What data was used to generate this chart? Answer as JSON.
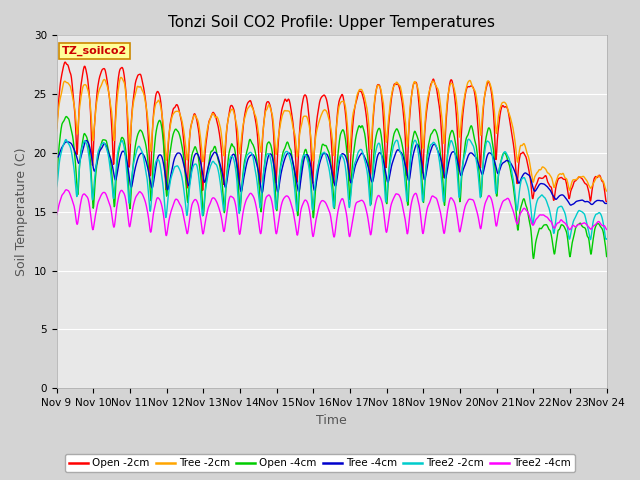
{
  "title": "Tonzi Soil CO2 Profile: Upper Temperatures",
  "xlabel": "Time",
  "ylabel": "Soil Temperature (C)",
  "ylim": [
    0,
    30
  ],
  "plot_bg_color": "#e8e8e8",
  "fig_bg_color": "#d4d4d4",
  "x_ticks": [
    9,
    10,
    11,
    12,
    13,
    14,
    15,
    16,
    17,
    18,
    19,
    20,
    21,
    22,
    23,
    24
  ],
  "x_tick_labels": [
    "Nov 9",
    "Nov 10",
    "Nov 11",
    "Nov 12",
    "Nov 13",
    "Nov 14",
    "Nov 15",
    "Nov 16",
    "Nov 17",
    "Nov 18",
    "Nov 19",
    "Nov 20",
    "Nov 21",
    "Nov 22",
    "Nov 23",
    "Nov 24"
  ],
  "yticks": [
    0,
    5,
    10,
    15,
    20,
    25,
    30
  ],
  "series": [
    {
      "label": "Open -2cm",
      "color": "#ff0000"
    },
    {
      "label": "Tree -2cm",
      "color": "#ffa500"
    },
    {
      "label": "Open -4cm",
      "color": "#00cc00"
    },
    {
      "label": "Tree -4cm",
      "color": "#0000cc"
    },
    {
      "label": "Tree2 -2cm",
      "color": "#00cccc"
    },
    {
      "label": "Tree2 -4cm",
      "color": "#ff00ff"
    }
  ],
  "legend_box_facecolor": "#ffff99",
  "legend_box_edgecolor": "#cc8800",
  "legend_label": "TZ_soilco2",
  "grid_color": "#ffffff",
  "title_fontsize": 11,
  "label_fontsize": 9,
  "tick_fontsize": 7.5,
  "linewidth": 1.0
}
